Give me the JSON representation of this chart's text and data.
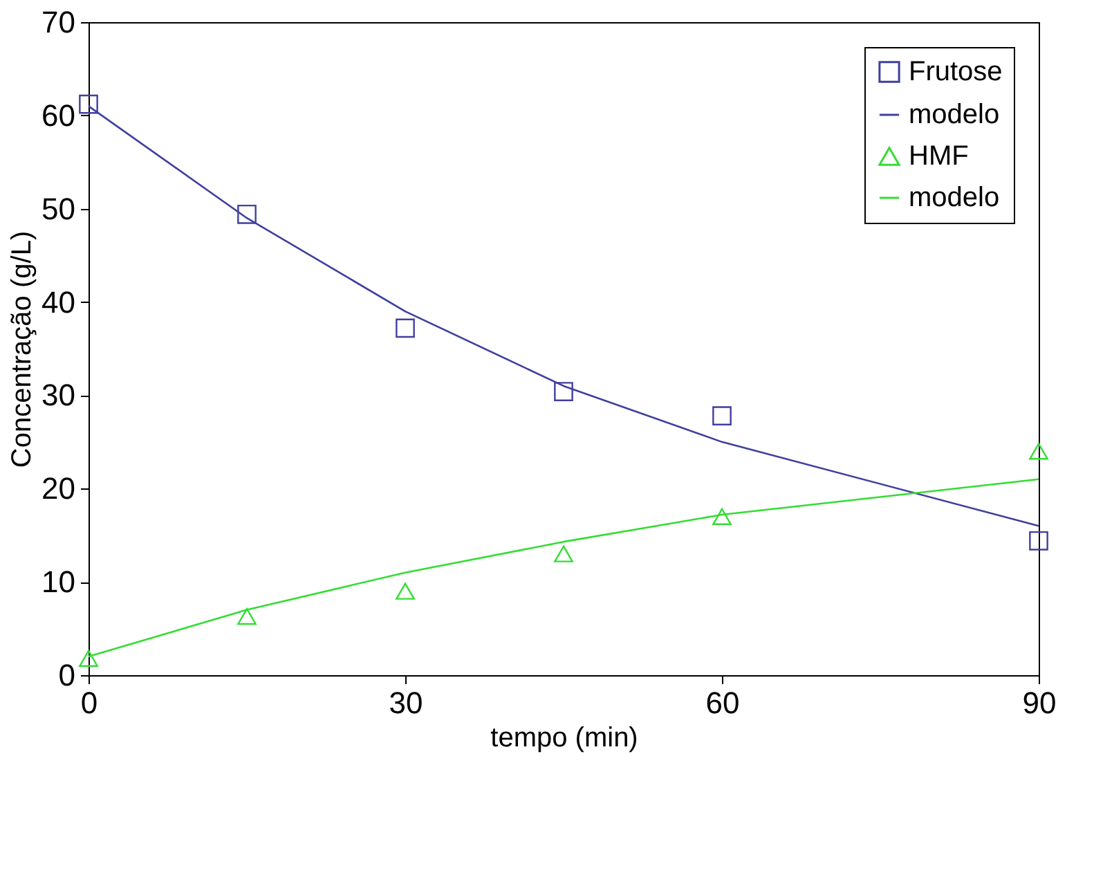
{
  "chart_data": {
    "type": "scatter",
    "xlabel": "tempo (min)",
    "ylabel": "Concentração (g/L)",
    "x": [
      0,
      15,
      30,
      45,
      60,
      90
    ],
    "series": [
      {
        "name": "Frutose",
        "marker": "square",
        "color": "#3f3f9f",
        "values": [
          61.2,
          49.4,
          37.2,
          30.4,
          27.8,
          14.4
        ]
      },
      {
        "name": "modelo",
        "type": "line",
        "color": "#3f3f9f",
        "values": [
          61,
          49,
          39,
          31,
          25,
          16
        ]
      },
      {
        "name": "HMF",
        "marker": "triangle",
        "color": "#33dd33",
        "values": [
          1.8,
          6.3,
          9,
          13,
          17,
          24
        ]
      },
      {
        "name": "modelo",
        "type": "line",
        "color": "#33dd33",
        "values": [
          2,
          7,
          11,
          14.3,
          17.2,
          21
        ]
      }
    ],
    "xlim": [
      0,
      90
    ],
    "xticks": [
      0,
      30,
      60,
      90
    ],
    "ylim": [
      0,
      70
    ],
    "yticks": [
      0,
      10,
      20,
      30,
      40,
      50,
      60,
      70
    ],
    "grid": false,
    "legend": "top right"
  }
}
